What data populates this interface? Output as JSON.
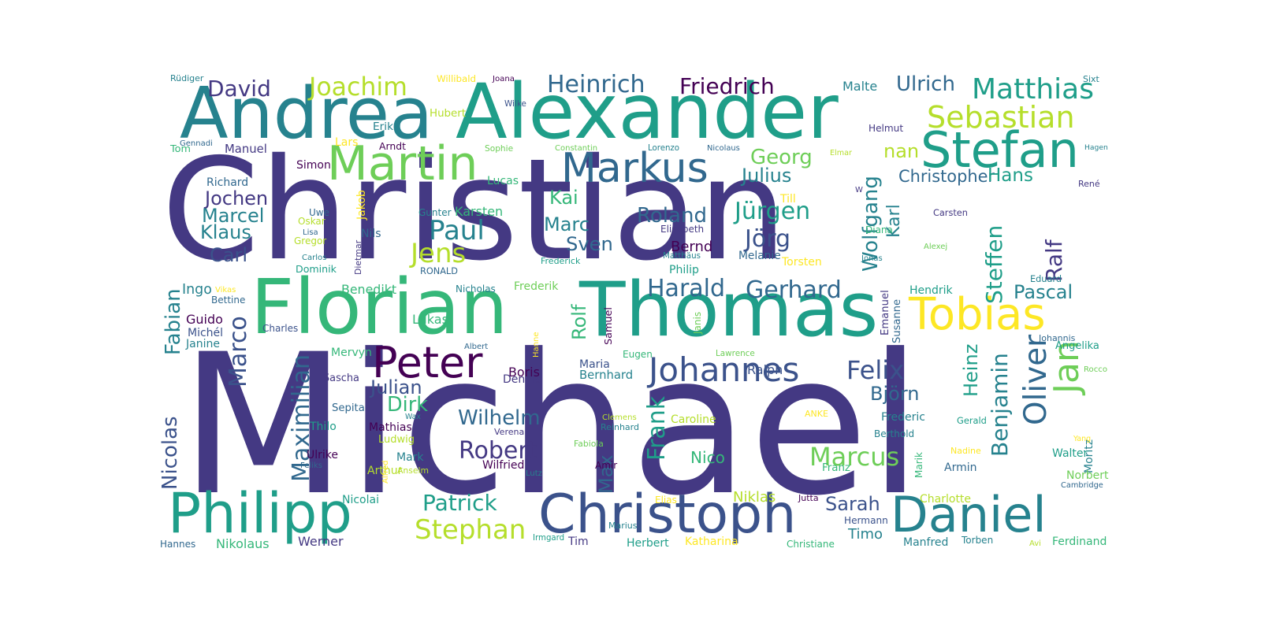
{
  "colors": {
    "dark_purple": "#440154",
    "indigo": "#443983",
    "blue": "#3b528b",
    "slate": "#31688e",
    "teal_dark": "#26828e",
    "teal": "#1f9e89",
    "green": "#35b779",
    "lime": "#6ece58",
    "yellow_green": "#b5de2b",
    "yellow": "#fde725"
  },
  "words": [
    {
      "text": "Christian",
      "color": "#443983"
    },
    {
      "text": "Michael",
      "color": "#443983"
    },
    {
      "text": "Alexander",
      "color": "#1f9e89"
    },
    {
      "text": "Thomas",
      "color": "#1f9e89"
    },
    {
      "text": "Andrea",
      "color": "#26828e"
    },
    {
      "text": "Florian",
      "color": "#35b779"
    },
    {
      "text": "Philipp",
      "color": "#1f9e89"
    },
    {
      "text": "Christoph",
      "color": "#3b528b"
    },
    {
      "text": "Daniel",
      "color": "#26828e"
    },
    {
      "text": "Stefan",
      "color": "#1f9e89"
    },
    {
      "text": "Martin",
      "color": "#6ece58"
    },
    {
      "text": "Markus",
      "color": "#31688e"
    },
    {
      "text": "Peter",
      "color": "#440154"
    },
    {
      "text": "Tobias",
      "color": "#fde725"
    },
    {
      "text": "Oliver",
      "color": "#31688e"
    },
    {
      "text": "Jan",
      "color": "#6ece58"
    },
    {
      "text": "Johannes",
      "color": "#3b528b"
    },
    {
      "text": "Matthias",
      "color": "#1f9e89"
    },
    {
      "text": "Sebastian",
      "color": "#b5de2b"
    },
    {
      "text": "Joachim",
      "color": "#b5de2b"
    },
    {
      "text": "David",
      "color": "#443983"
    },
    {
      "text": "Heinrich",
      "color": "#31688e"
    },
    {
      "text": "Friedrich",
      "color": "#440154"
    },
    {
      "text": "Ulrich",
      "color": "#31688e"
    },
    {
      "text": "Georg",
      "color": "#6ece58"
    },
    {
      "text": "Julius",
      "color": "#26828e"
    },
    {
      "text": "Jens",
      "color": "#b5de2b"
    },
    {
      "text": "Paul",
      "color": "#26828e"
    },
    {
      "text": "Kai",
      "color": "#35b779"
    },
    {
      "text": "Marc",
      "color": "#26828e"
    },
    {
      "text": "Sven",
      "color": "#31688e"
    },
    {
      "text": "Roland",
      "color": "#31688e"
    },
    {
      "text": "Jürgen",
      "color": "#1f9e89"
    },
    {
      "text": "Jörg",
      "color": "#3b528b"
    },
    {
      "text": "Wolfgang",
      "color": "#26828e"
    },
    {
      "text": "Karl",
      "color": "#26828e"
    },
    {
      "text": "Christopher",
      "color": "#31688e"
    },
    {
      "text": "Hans",
      "color": "#1f9e89"
    },
    {
      "text": "nan",
      "color": "#b5de2b"
    },
    {
      "text": "Steffen",
      "color": "#1f9e89"
    },
    {
      "text": "Ralf",
      "color": "#443983"
    },
    {
      "text": "Pascal",
      "color": "#26828e"
    },
    {
      "text": "Harald",
      "color": "#31688e"
    },
    {
      "text": "Gerhard",
      "color": "#31688e"
    },
    {
      "text": "Felix",
      "color": "#3b528b"
    },
    {
      "text": "Björn",
      "color": "#31688e"
    },
    {
      "text": "Benjamin",
      "color": "#26828e"
    },
    {
      "text": "Heinz",
      "color": "#1f9e89"
    },
    {
      "text": "Marcus",
      "color": "#6ece58"
    },
    {
      "text": "Frank",
      "color": "#1f9e89"
    },
    {
      "text": "Max",
      "color": "#31688e"
    },
    {
      "text": "Robert",
      "color": "#443983"
    },
    {
      "text": "Wilhelm",
      "color": "#31688e"
    },
    {
      "text": "Julian",
      "color": "#3b528b"
    },
    {
      "text": "Dirk",
      "color": "#35b779"
    },
    {
      "text": "Patrick",
      "color": "#1f9e89"
    },
    {
      "text": "Stephan",
      "color": "#b5de2b"
    },
    {
      "text": "Sarah",
      "color": "#3b528b"
    },
    {
      "text": "Timo",
      "color": "#26828e"
    },
    {
      "text": "Niklas",
      "color": "#b5de2b"
    },
    {
      "text": "Nico",
      "color": "#35b779"
    },
    {
      "text": "Marco",
      "color": "#3b528b"
    },
    {
      "text": "Maximilian",
      "color": "#31688e"
    },
    {
      "text": "Nicolas",
      "color": "#3b528b"
    },
    {
      "text": "Fabian",
      "color": "#26828e"
    },
    {
      "text": "Jochen",
      "color": "#443983"
    },
    {
      "text": "Marcel",
      "color": "#26828e"
    },
    {
      "text": "Klaus",
      "color": "#26828e"
    },
    {
      "text": "Carl",
      "color": "#3b528b"
    },
    {
      "text": "Richard",
      "color": "#31688e"
    },
    {
      "text": "Manuel",
      "color": "#443983"
    },
    {
      "text": "Tom",
      "color": "#35b779"
    },
    {
      "text": "Simon",
      "color": "#440154"
    },
    {
      "text": "Uwe",
      "color": "#31688e"
    },
    {
      "text": "Oskar",
      "color": "#b5de2b"
    },
    {
      "text": "Gregor",
      "color": "#b5de2b"
    },
    {
      "text": "Lisa",
      "color": "#31688e"
    },
    {
      "text": "Carlos",
      "color": "#26828e"
    },
    {
      "text": "Dominik",
      "color": "#1f9e89"
    },
    {
      "text": "Dietmar",
      "color": "#443983"
    },
    {
      "text": "Nils",
      "color": "#31688e"
    },
    {
      "text": "Jakob",
      "color": "#fde725"
    },
    {
      "text": "Gunter",
      "color": "#26828e"
    },
    {
      "text": "Karsten",
      "color": "#35b779"
    },
    {
      "text": "Lucas",
      "color": "#35b779"
    },
    {
      "text": "Lars",
      "color": "#fde725"
    },
    {
      "text": "Arndt",
      "color": "#440154"
    },
    {
      "text": "Erik",
      "color": "#26828e"
    },
    {
      "text": "Hubert",
      "color": "#b5de2b"
    },
    {
      "text": "Willibald",
      "color": "#fde725"
    },
    {
      "text": "Joana",
      "color": "#440154"
    },
    {
      "text": "Wilke",
      "color": "#3b528b"
    },
    {
      "text": "Sophie",
      "color": "#6ece58"
    },
    {
      "text": "Constantin",
      "color": "#6ece58"
    },
    {
      "text": "Lorenzo",
      "color": "#26828e"
    },
    {
      "text": "Nicolaus",
      "color": "#31688e"
    },
    {
      "text": "Malte",
      "color": "#26828e"
    },
    {
      "text": "Helmut",
      "color": "#443983"
    },
    {
      "text": "Elmar",
      "color": "#b5de2b"
    },
    {
      "text": "W",
      "color": "#443983"
    },
    {
      "text": "Till",
      "color": "#fde725"
    },
    {
      "text": "Diana",
      "color": "#35b779"
    },
    {
      "text": "Carsten",
      "color": "#443983"
    },
    {
      "text": "Alexej",
      "color": "#6ece58"
    },
    {
      "text": "Jonas",
      "color": "#26828e"
    },
    {
      "text": "Torsten",
      "color": "#fde725"
    },
    {
      "text": "Melanie",
      "color": "#31688e"
    },
    {
      "text": "Elisabeth",
      "color": "#443983"
    },
    {
      "text": "Bernd",
      "color": "#440154"
    },
    {
      "text": "Matthäus",
      "color": "#26828e"
    },
    {
      "text": "Philip",
      "color": "#1f9e89"
    },
    {
      "text": "Frederick",
      "color": "#1f9e89"
    },
    {
      "text": "RONALD",
      "color": "#31688e"
    },
    {
      "text": "Nicholas",
      "color": "#26828e"
    },
    {
      "text": "Frederik",
      "color": "#6ece58"
    },
    {
      "text": "Benedikt",
      "color": "#35b779"
    },
    {
      "text": "Ingo",
      "color": "#26828e"
    },
    {
      "text": "Vikas",
      "color": "#fde725"
    },
    {
      "text": "Bettine",
      "color": "#31688e"
    },
    {
      "text": "Guido",
      "color": "#440154"
    },
    {
      "text": "Michél",
      "color": "#3b528b"
    },
    {
      "text": "Janine",
      "color": "#26828e"
    },
    {
      "text": "Charles",
      "color": "#3b528b"
    },
    {
      "text": "Lukas",
      "color": "#35b779"
    },
    {
      "text": "Rolf",
      "color": "#35b779"
    },
    {
      "text": "Samuel",
      "color": "#440154"
    },
    {
      "text": "Janis",
      "color": "#6ece58"
    },
    {
      "text": "Emanuel",
      "color": "#443983"
    },
    {
      "text": "Susanne",
      "color": "#31688e"
    },
    {
      "text": "Hendrik",
      "color": "#1f9e89"
    },
    {
      "text": "Eduard",
      "color": "#26828e"
    },
    {
      "text": "Johannis",
      "color": "#31688e"
    },
    {
      "text": "Angelika",
      "color": "#1f9e89"
    },
    {
      "text": "Rocco",
      "color": "#6ece58"
    },
    {
      "text": "Moritz",
      "color": "#26828e"
    },
    {
      "text": "Yang",
      "color": "#fde725"
    },
    {
      "text": "Walter",
      "color": "#1f9e89"
    },
    {
      "text": "Norbert",
      "color": "#6ece58"
    },
    {
      "text": "Cambridge",
      "color": "#31688e"
    },
    {
      "text": "Armin",
      "color": "#31688e"
    },
    {
      "text": "Gerald",
      "color": "#1f9e89"
    },
    {
      "text": "Berthold",
      "color": "#26828e"
    },
    {
      "text": "Frederic",
      "color": "#26828e"
    },
    {
      "text": "Marik",
      "color": "#35b779"
    },
    {
      "text": "Nadine",
      "color": "#fde725"
    },
    {
      "text": "ANKE",
      "color": "#fde725"
    },
    {
      "text": "Ralph",
      "color": "#3b528b"
    },
    {
      "text": "Caroline",
      "color": "#b5de2b"
    },
    {
      "text": "Franz",
      "color": "#35b779"
    },
    {
      "text": "Jutta",
      "color": "#440154"
    },
    {
      "text": "Hermann",
      "color": "#3b528b"
    },
    {
      "text": "Charlotte",
      "color": "#b5de2b"
    },
    {
      "text": "Manfred",
      "color": "#26828e"
    },
    {
      "text": "Torben",
      "color": "#26828e"
    },
    {
      "text": "Avi",
      "color": "#b5de2b"
    },
    {
      "text": "Ferdinand",
      "color": "#35b779"
    },
    {
      "text": "Christiane",
      "color": "#35b779"
    },
    {
      "text": "Katharina",
      "color": "#fde725"
    },
    {
      "text": "Herbert",
      "color": "#1f9e89"
    },
    {
      "text": "Tim",
      "color": "#443983"
    },
    {
      "text": "Irmgard",
      "color": "#1f9e89"
    },
    {
      "text": "Marius",
      "color": "#26828e"
    },
    {
      "text": "Elias",
      "color": "#fde725"
    },
    {
      "text": "Amir",
      "color": "#440154"
    },
    {
      "text": "Lutz",
      "color": "#26828e"
    },
    {
      "text": "Wilfried",
      "color": "#440154"
    },
    {
      "text": "Anselm",
      "color": "#b5de2b"
    },
    {
      "text": "Arthur",
      "color": "#b5de2b"
    },
    {
      "text": "Mark",
      "color": "#26828e"
    },
    {
      "text": "Alfred",
      "color": "#fde725"
    },
    {
      "text": "Nicolai",
      "color": "#1f9e89"
    },
    {
      "text": "Werner",
      "color": "#443983"
    },
    {
      "text": "Nikolaus",
      "color": "#35b779"
    },
    {
      "text": "Hannes",
      "color": "#31688e"
    },
    {
      "text": "Feliks",
      "color": "#31688e"
    },
    {
      "text": "Ulrike",
      "color": "#440154"
    },
    {
      "text": "Thilo",
      "color": "#1f9e89"
    },
    {
      "text": "Sepita",
      "color": "#31688e"
    },
    {
      "text": "Ludwig",
      "color": "#b5de2b"
    },
    {
      "text": "Mathias",
      "color": "#440154"
    },
    {
      "text": "Wax",
      "color": "#26828e"
    },
    {
      "text": "Verena",
      "color": "#443983"
    },
    {
      "text": "Reinhard",
      "color": "#26828e"
    },
    {
      "text": "Clemens",
      "color": "#b5de2b"
    },
    {
      "text": "Fabiola",
      "color": "#6ece58"
    },
    {
      "text": "Bernhard",
      "color": "#26828e"
    },
    {
      "text": "Maria",
      "color": "#3b528b"
    },
    {
      "text": "Eugen",
      "color": "#35b779"
    },
    {
      "text": "Lawrence",
      "color": "#6ece58"
    },
    {
      "text": "Boris",
      "color": "#440154"
    },
    {
      "text": "Dennis",
      "color": "#443983"
    },
    {
      "text": "Sascha",
      "color": "#443983"
    },
    {
      "text": "Mervyn",
      "color": "#35b779"
    },
    {
      "text": "Albert",
      "color": "#31688e"
    },
    {
      "text": "Hanne",
      "color": "#fde725"
    },
    {
      "text": "Rüdiger",
      "color": "#26828e"
    },
    {
      "text": "Gennadi",
      "color": "#31688e"
    },
    {
      "text": "Sixt",
      "color": "#26828e"
    },
    {
      "text": "Hagen",
      "color": "#26828e"
    },
    {
      "text": "René",
      "color": "#443983"
    }
  ]
}
